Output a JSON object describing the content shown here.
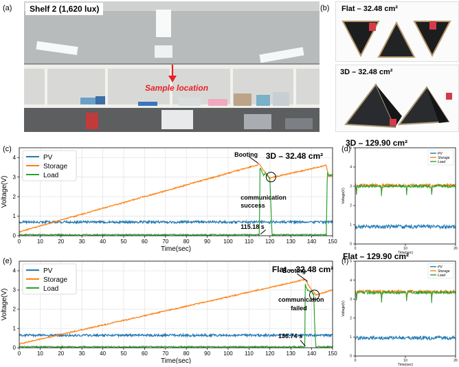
{
  "panels": {
    "a": "(a)",
    "b": "(b)",
    "c": "(c)",
    "d": "(d)",
    "e": "(e)",
    "f": "(f)"
  },
  "photo_a": {
    "shelf_label": "Shelf 2 (1,620 lux)",
    "sample_label": "Sample location",
    "arrow_color": "#e8202a"
  },
  "photo_b": {
    "flat_label": "Flat – 32.48 cm²",
    "three_d_label": "3D – 32.48 cm²"
  },
  "colors": {
    "pv": "#1f77b4",
    "storage": "#ff7f0e",
    "load": "#2ca02c"
  },
  "chart_data": [
    {
      "id": "c",
      "type": "line",
      "title": "3D – 32.48 cm²",
      "xlabel": "Time(sec)",
      "ylabel": "Voltage(V)",
      "xlim": [
        0,
        150
      ],
      "ylim": [
        0,
        4.5
      ],
      "xticks": [
        0,
        10,
        20,
        30,
        40,
        50,
        60,
        70,
        80,
        90,
        100,
        110,
        120,
        130,
        140,
        150
      ],
      "yticks": [
        0,
        1,
        2,
        3,
        4
      ],
      "grid": true,
      "legend": "top-left",
      "series": [
        {
          "name": "PV",
          "x": [
            0,
            150
          ],
          "y": [
            0.7,
            0.7
          ]
        },
        {
          "name": "Storage",
          "x": [
            0,
            115,
            118,
            120,
            147,
            148,
            150
          ],
          "y": [
            0.2,
            3.65,
            3.2,
            2.95,
            3.6,
            3.05,
            3.05
          ]
        },
        {
          "name": "Load",
          "x": [
            0,
            115,
            115.2,
            117,
            118,
            120,
            121,
            147,
            147.5,
            148,
            150
          ],
          "y": [
            0.05,
            0.05,
            3.5,
            3.1,
            3.2,
            2.9,
            0.05,
            0.05,
            3.3,
            3.1,
            3.1
          ]
        }
      ],
      "annotations": [
        {
          "text": "Booting",
          "x": 103,
          "y": 4.05
        },
        {
          "text": "communication",
          "x": 106,
          "y": 1.85
        },
        {
          "text": "success",
          "x": 106,
          "y": 1.45
        },
        {
          "text": "115.18 s",
          "x": 106,
          "y": 0.35
        }
      ]
    },
    {
      "id": "d",
      "type": "line",
      "title": "3D – 129.90 cm²",
      "xlabel": "Time(sec)",
      "ylabel": "Voltage(V)",
      "xlim": [
        0,
        20
      ],
      "ylim": [
        0,
        5
      ],
      "xticks": [
        0,
        10,
        20
      ],
      "yticks": [
        0,
        1,
        2,
        3,
        4,
        5
      ],
      "grid": false,
      "legend": "top-right",
      "series": [
        {
          "name": "PV",
          "x": [
            0,
            20
          ],
          "y": [
            0.9,
            0.9
          ]
        },
        {
          "name": "Storage",
          "x": [
            0,
            20
          ],
          "y": [
            3.05,
            3.05
          ]
        },
        {
          "name": "Load",
          "x": [
            0,
            20
          ],
          "y": [
            3.0,
            3.0
          ]
        }
      ]
    },
    {
      "id": "e",
      "type": "line",
      "title": "Flat – 32.48 cm²",
      "xlabel": "Time(sec)",
      "ylabel": "Voltage(V)",
      "xlim": [
        0,
        150
      ],
      "ylim": [
        0,
        4.5
      ],
      "xticks": [
        0,
        10,
        20,
        30,
        40,
        50,
        60,
        70,
        80,
        90,
        100,
        110,
        120,
        130,
        140,
        150
      ],
      "yticks": [
        0,
        1,
        2,
        3,
        4
      ],
      "grid": true,
      "legend": "top-left",
      "series": [
        {
          "name": "PV",
          "x": [
            0,
            150
          ],
          "y": [
            0.65,
            0.65
          ]
        },
        {
          "name": "Storage",
          "x": [
            0,
            137,
            139,
            142,
            150
          ],
          "y": [
            0.2,
            3.55,
            3.15,
            2.75,
            3.0
          ]
        },
        {
          "name": "Load",
          "x": [
            0,
            136.7,
            136.9,
            138,
            140,
            141,
            141.5,
            142,
            150
          ],
          "y": [
            0.05,
            0.05,
            3.3,
            3.0,
            2.9,
            2.75,
            1.0,
            0.05,
            0.05
          ]
        }
      ],
      "annotations": [
        {
          "text": "Booting",
          "x": 126,
          "y": 3.9
        },
        {
          "text": "communication",
          "x": 124,
          "y": 2.4
        },
        {
          "text": "failed",
          "x": 130,
          "y": 1.95
        },
        {
          "text": "136.74 s",
          "x": 124,
          "y": 0.5
        }
      ]
    },
    {
      "id": "f",
      "type": "line",
      "title": "Flat – 129.90 cm²",
      "xlabel": "Time(sec)",
      "ylabel": "Voltage(V)",
      "xlim": [
        0,
        20
      ],
      "ylim": [
        0,
        5
      ],
      "xticks": [
        0,
        10,
        20
      ],
      "yticks": [
        0,
        1,
        2,
        3,
        4,
        5
      ],
      "grid": false,
      "legend": "top-right",
      "series": [
        {
          "name": "PV",
          "x": [
            0,
            20
          ],
          "y": [
            0.95,
            0.95
          ]
        },
        {
          "name": "Storage",
          "x": [
            0,
            20
          ],
          "y": [
            3.4,
            3.4
          ]
        },
        {
          "name": "Load",
          "x": [
            0,
            20
          ],
          "y": [
            3.35,
            3.35
          ]
        }
      ]
    }
  ]
}
